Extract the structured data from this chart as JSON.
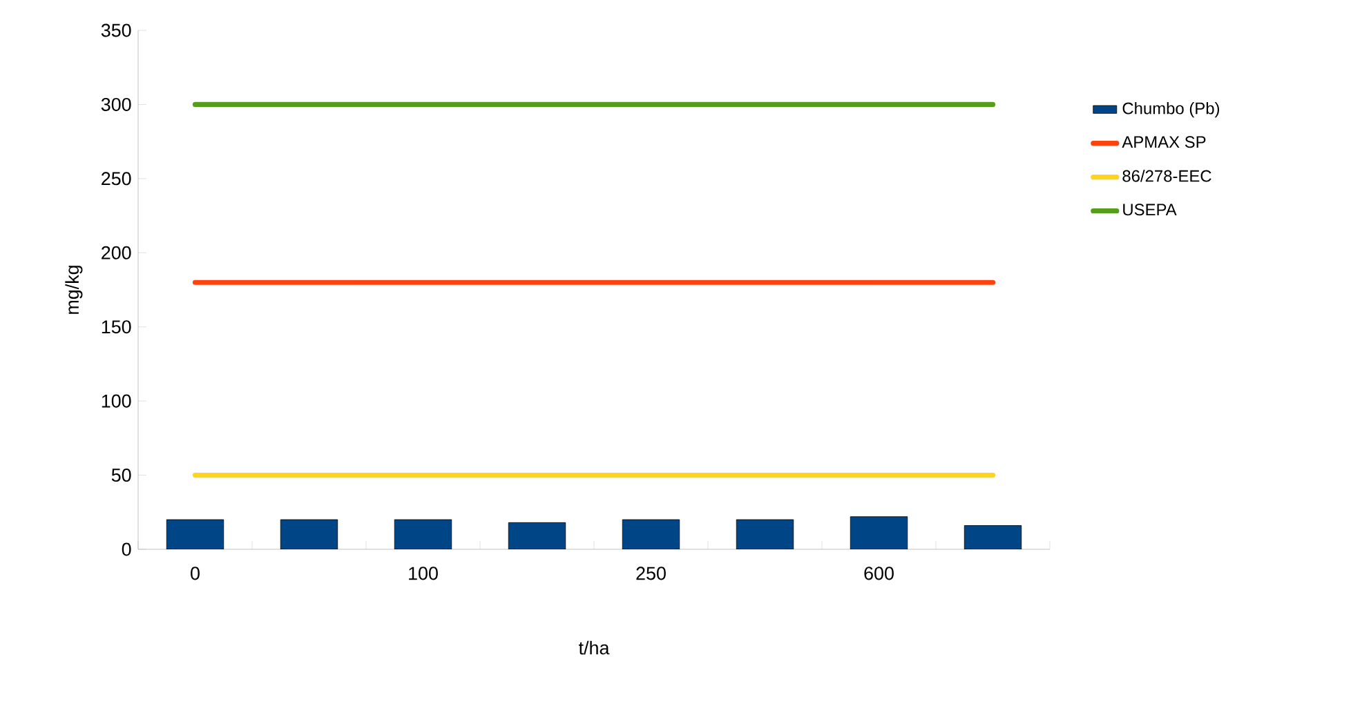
{
  "chart_data": {
    "type": "bar",
    "xlabel": "t/ha",
    "ylabel": "mg/kg",
    "categories": [
      "0",
      null,
      "100",
      null,
      "250",
      null,
      "600",
      null
    ],
    "series": [
      {
        "name": "Chumbo (Pb)",
        "color": "#004586",
        "values": [
          20,
          20,
          20,
          18,
          20,
          20,
          22,
          16
        ]
      },
      {
        "name": "APMAX SP",
        "type": "line",
        "color": "#ff420e",
        "values": [
          180,
          180,
          180,
          180,
          180,
          180,
          180,
          180
        ]
      },
      {
        "name": "86/278-EEC",
        "type": "line",
        "color": "#ffd320",
        "values": [
          50,
          50,
          50,
          50,
          50,
          50,
          50,
          50
        ]
      },
      {
        "name": "USEPA",
        "type": "line",
        "color": "#579d1c",
        "values": [
          300,
          300,
          300,
          300,
          300,
          300,
          300,
          300
        ]
      }
    ],
    "ylim": [
      0,
      350
    ],
    "yticks": [
      0,
      50,
      100,
      150,
      200,
      250,
      300,
      350
    ],
    "grid": false,
    "legend": "right"
  }
}
